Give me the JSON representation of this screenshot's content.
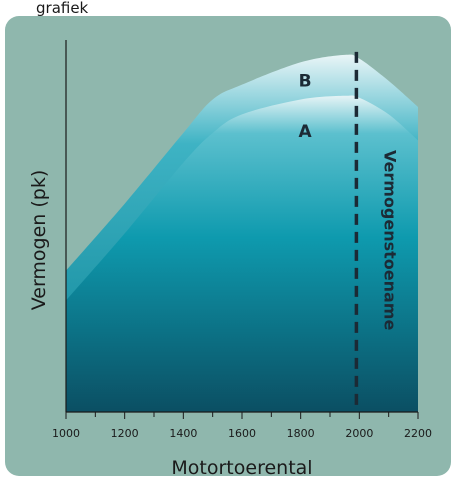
{
  "top_text": "grafiek",
  "chart_data": {
    "type": "area",
    "title": "",
    "xlabel": "Motortoerental",
    "ylabel": "Vermogen (pk)",
    "xlim": [
      1000,
      2200
    ],
    "x_ticks": [
      1000,
      1200,
      1400,
      1600,
      1800,
      2000,
      2200
    ],
    "x_tick_labels": [
      "1000",
      "1200",
      "1400",
      "1600",
      "1800",
      "2000",
      "2200"
    ],
    "ylim": [
      0,
      100
    ],
    "grid": false,
    "series": [
      {
        "name": "A",
        "x": [
          1000,
          1200,
          1400,
          1500,
          1600,
          1800,
          1950,
          2000,
          2100,
          2200
        ],
        "y": [
          30,
          48,
          67,
          75,
          80,
          84,
          85,
          84.5,
          80,
          73
        ]
      },
      {
        "name": "B",
        "x": [
          1000,
          1200,
          1400,
          1500,
          1600,
          1800,
          1950,
          2000,
          2100,
          2200
        ],
        "y": [
          38,
          56,
          75,
          84,
          88,
          94,
          96,
          95,
          89,
          82
        ]
      }
    ],
    "annotations": [
      {
        "text": "Vermogenstoename",
        "x": 1990,
        "orientation": "vertical-dashed-line"
      }
    ],
    "colors": {
      "panel": "#8fb7ad",
      "area_dark": "#0b4f63",
      "area_mid": "#0e9aae",
      "area_light": "#e6f4f6",
      "dash": "#1c2a35"
    }
  }
}
